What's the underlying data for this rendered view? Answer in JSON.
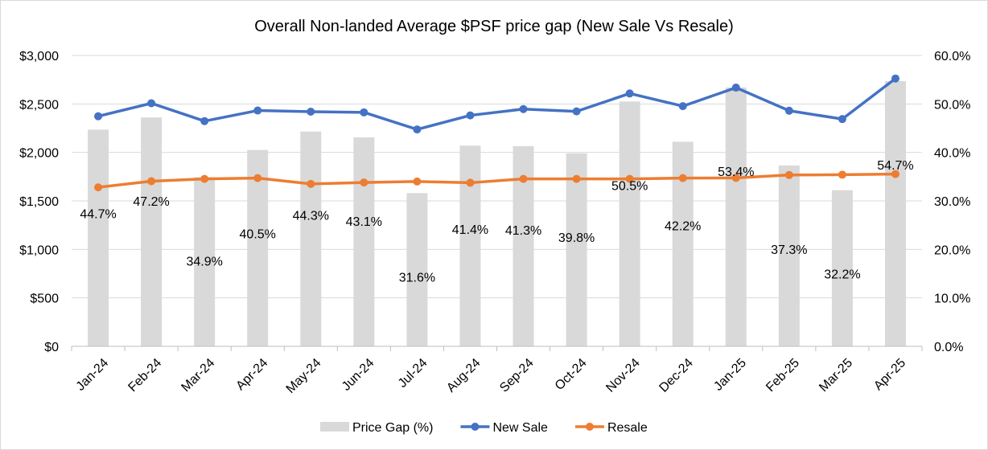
{
  "chart_data": {
    "type": "bar",
    "title": "Overall Non-landed Average $PSF price gap (New Sale Vs Resale)",
    "categories": [
      "Jan-24",
      "Feb-24",
      "Mar-24",
      "Apr-24",
      "May-24",
      "Jun-24",
      "Jul-24",
      "Aug-24",
      "Sep-24",
      "Oct-24",
      "Nov-24",
      "Dec-24",
      "Jan-25",
      "Feb-25",
      "Mar-25",
      "Apr-25"
    ],
    "series": [
      {
        "name": "Price Gap (%)",
        "type": "bar",
        "axis": "right",
        "color": "#d9d9d9",
        "values": [
          44.7,
          47.2,
          34.9,
          40.5,
          44.3,
          43.1,
          31.6,
          41.4,
          41.3,
          39.8,
          50.5,
          42.2,
          53.4,
          37.3,
          32.2,
          54.7
        ],
        "labels": [
          "44.7%",
          "47.2%",
          "34.9%",
          "40.5%",
          "44.3%",
          "43.1%",
          "31.6%",
          "41.4%",
          "41.3%",
          "39.8%",
          "50.5%",
          "42.2%",
          "53.4%",
          "37.3%",
          "32.2%",
          "54.7%"
        ]
      },
      {
        "name": "New Sale",
        "type": "line",
        "axis": "left",
        "color": "#4472c4",
        "values": [
          2373,
          2507,
          2323,
          2432,
          2420,
          2413,
          2237,
          2382,
          2447,
          2423,
          2608,
          2477,
          2668,
          2430,
          2344,
          2762
        ]
      },
      {
        "name": "Resale",
        "type": "line",
        "axis": "left",
        "color": "#ed7d31",
        "values": [
          1640,
          1703,
          1727,
          1735,
          1675,
          1690,
          1700,
          1687,
          1727,
          1727,
          1727,
          1735,
          1737,
          1767,
          1770,
          1777
        ]
      }
    ],
    "y_left": {
      "ylim": [
        0,
        3000
      ],
      "ticks": [
        "$0",
        "$500",
        "$1,000",
        "$1,500",
        "$2,000",
        "$2,500",
        "$3,000"
      ]
    },
    "y_right": {
      "ylim": [
        0,
        60
      ],
      "ticks": [
        "0.0%",
        "10.0%",
        "20.0%",
        "30.0%",
        "40.0%",
        "50.0%",
        "60.0%"
      ]
    },
    "grid": true,
    "legend": "bottom"
  }
}
